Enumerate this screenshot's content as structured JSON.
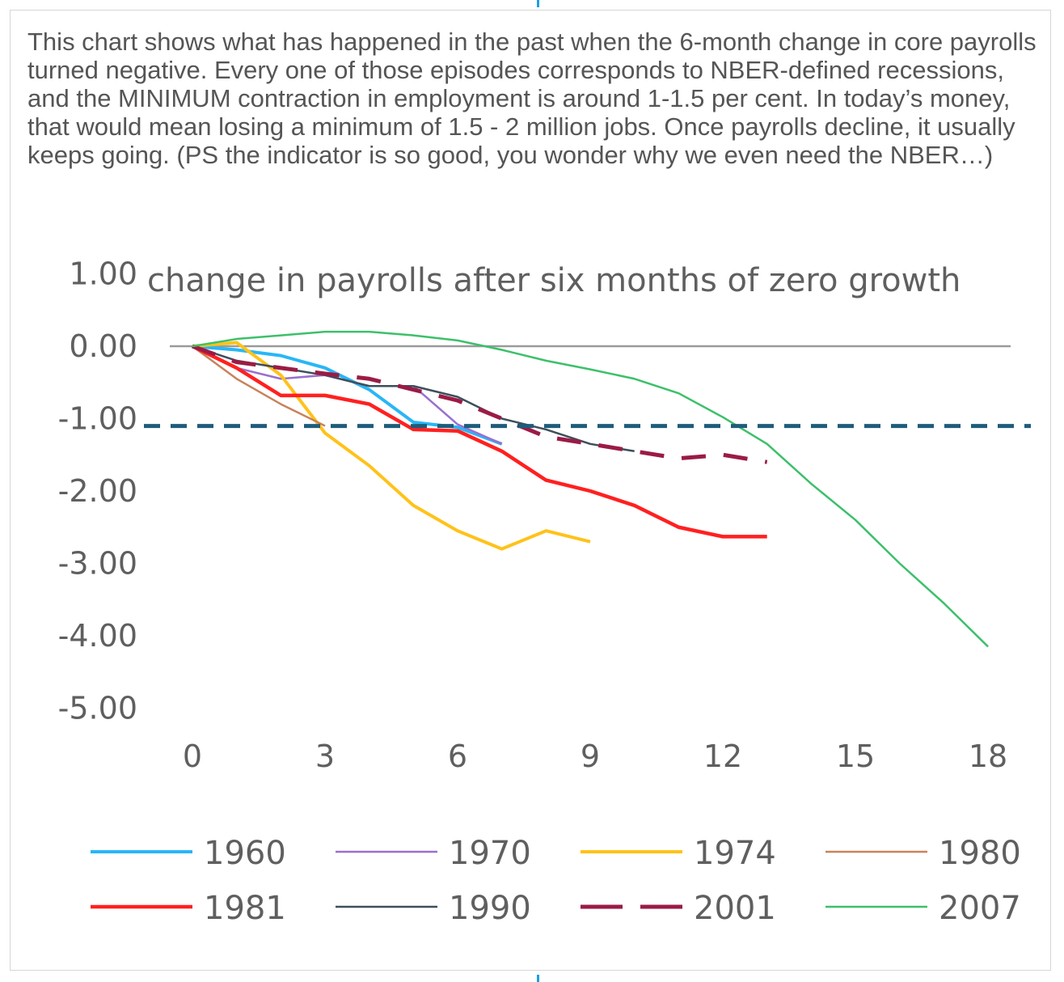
{
  "caption": "This chart shows what has happened in the past when the 6-month change in core payrolls turned negative. Every one of those episodes corresponds to NBER-defined recessions, and the MINIMUM contraction in employment is around 1-1.5 per cent. In today’s money, that would mean losing a minimum of 1.5 - 2 million jobs. Once payrolls decline, it usually keeps going. (PS the indicator is so good, you wonder why we even need the NBER…)",
  "chart_data": {
    "type": "line",
    "title": "change in payrolls after six months of zero growth",
    "xlabel": "",
    "ylabel": "",
    "xlim": [
      0,
      18
    ],
    "ylim": [
      -5,
      1
    ],
    "x_ticks": [
      "0",
      "3",
      "6",
      "9",
      "12",
      "15",
      "18"
    ],
    "y_ticks": [
      "1.00",
      "0.00",
      "-1.00",
      "-2.00",
      "-3.00",
      "-4.00",
      "-5.00"
    ],
    "reference_line": {
      "value": -1.08,
      "color": "#1f5c7a",
      "style": "dashed"
    },
    "legend_position": "bottom",
    "series": [
      {
        "name": "1960",
        "color": "#29b6f6",
        "width": 4,
        "dash": false,
        "values": [
          0,
          -0.05,
          -0.13,
          -0.3,
          -0.6,
          -1.05,
          -1.12,
          -1.35
        ]
      },
      {
        "name": "1970",
        "color": "#9a6fd0",
        "width": 2.5,
        "dash": false,
        "values": [
          0,
          -0.3,
          -0.45,
          -0.4,
          -0.55,
          -0.55,
          -1.08,
          -1.35
        ]
      },
      {
        "name": "1974",
        "color": "#ffc21a",
        "width": 4,
        "dash": false,
        "values": [
          0,
          0.05,
          -0.4,
          -1.2,
          -1.65,
          -2.2,
          -2.55,
          -2.8,
          -2.55,
          -2.7
        ]
      },
      {
        "name": "1980",
        "color": "#c9825a",
        "width": 2.5,
        "dash": false,
        "values": [
          0,
          -0.45,
          -0.8,
          -1.1
        ]
      },
      {
        "name": "1981",
        "color": "#ff2020",
        "width": 4.5,
        "dash": false,
        "values": [
          0,
          -0.3,
          -0.68,
          -0.68,
          -0.8,
          -1.15,
          -1.17,
          -1.45,
          -1.85,
          -2.0,
          -2.2,
          -2.5,
          -2.63,
          -2.63
        ]
      },
      {
        "name": "1990",
        "color": "#3d4f5c",
        "width": 2.5,
        "dash": false,
        "values": [
          0,
          -0.2,
          -0.3,
          -0.4,
          -0.55,
          -0.55,
          -0.7,
          -1.0,
          -1.15,
          -1.35,
          -1.45
        ]
      },
      {
        "name": "2001",
        "color": "#9b1b45",
        "width": 5,
        "dash": true,
        "values": [
          0,
          -0.22,
          -0.3,
          -0.38,
          -0.45,
          -0.6,
          -0.75,
          -1.0,
          -1.25,
          -1.35,
          -1.45,
          -1.55,
          -1.5,
          -1.6
        ]
      },
      {
        "name": "2007",
        "color": "#3cc06a",
        "width": 2.5,
        "dash": false,
        "values": [
          0,
          0.1,
          0.15,
          0.2,
          0.2,
          0.15,
          0.08,
          -0.05,
          -0.2,
          -0.32,
          -0.45,
          -0.65,
          -0.98,
          -1.35,
          -1.9,
          -2.4,
          -3.0,
          -3.55,
          -4.15
        ]
      }
    ]
  }
}
